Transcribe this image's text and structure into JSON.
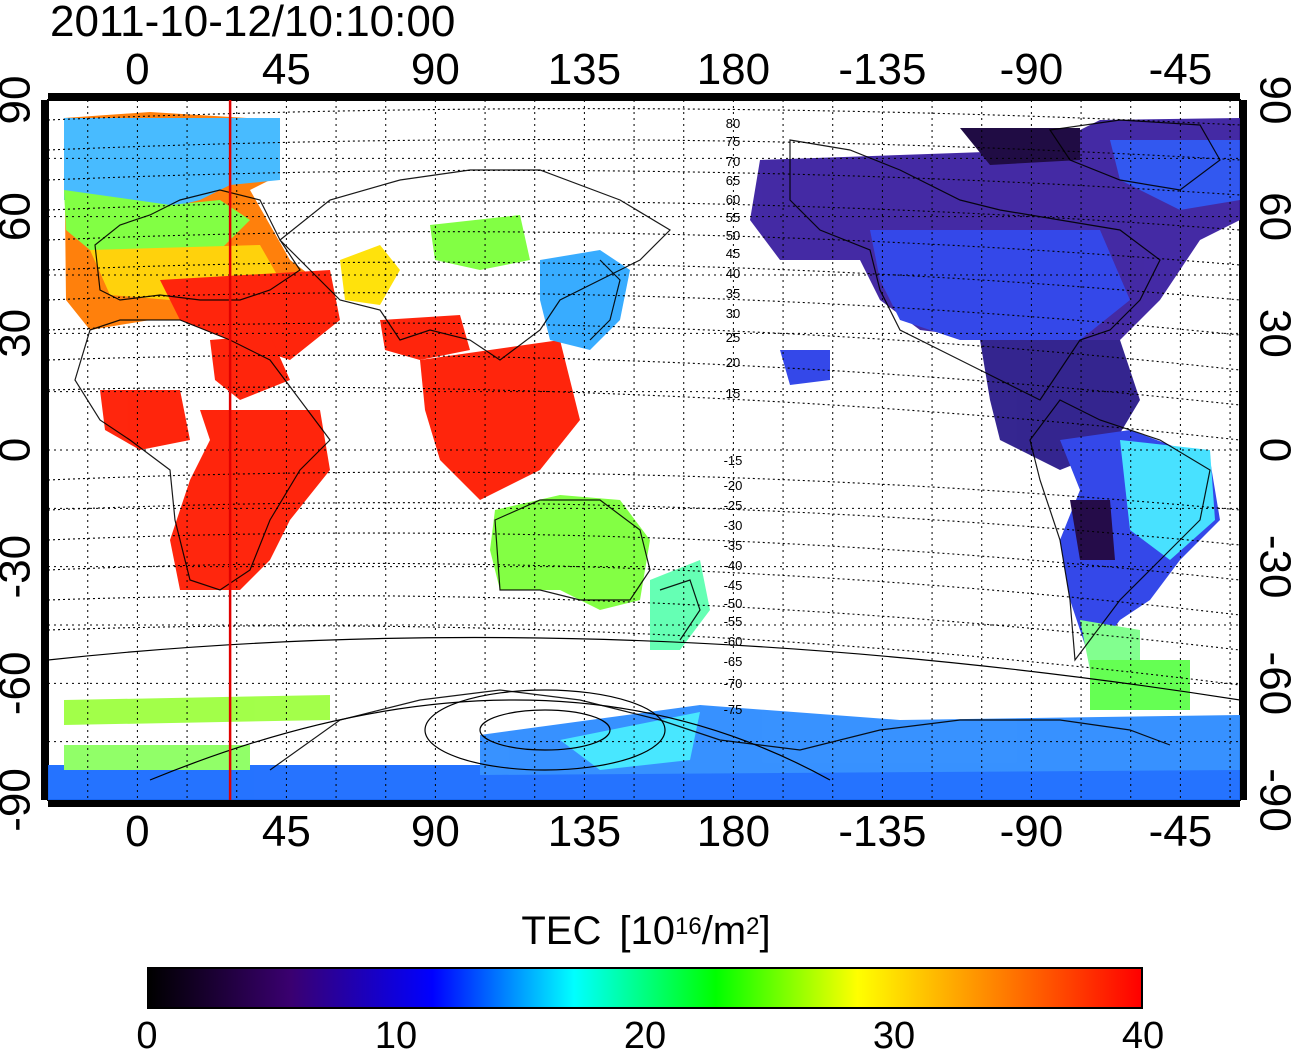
{
  "title": "2011-10-12/10:10:00",
  "map": {
    "lon_ticks": [
      "0",
      "45",
      "90",
      "135",
      "180",
      "-135",
      "-90",
      "-45"
    ],
    "lat_ticks": [
      "90",
      "60",
      "30",
      "0",
      "-30",
      "-60",
      "-90"
    ],
    "magnetic_latitude_labels": [
      "80",
      "75",
      "70",
      "65",
      "60",
      "55",
      "50",
      "45",
      "40",
      "35",
      "30",
      "25",
      "20",
      "15",
      "-15",
      "-20",
      "-25",
      "-30",
      "-35",
      "-40",
      "-45",
      "-50",
      "-55",
      "-60",
      "-65",
      "-70",
      "-75"
    ],
    "marker_longitude": 28,
    "marker_color": "#e00000"
  },
  "colorbar": {
    "title_prefix": "TEC",
    "title_units_open": "[10",
    "title_units_exp": "16",
    "title_units_mid": "/m",
    "title_units_exp2": "2",
    "title_units_close": "]",
    "min": 0,
    "max": 40,
    "ticks": [
      "0",
      "10",
      "20",
      "30",
      "40"
    ],
    "colors": [
      "#000000",
      "#3a0070",
      "#0000ff",
      "#00ffff",
      "#00ff00",
      "#ffff00",
      "#ff8000",
      "#ff0000"
    ]
  }
}
